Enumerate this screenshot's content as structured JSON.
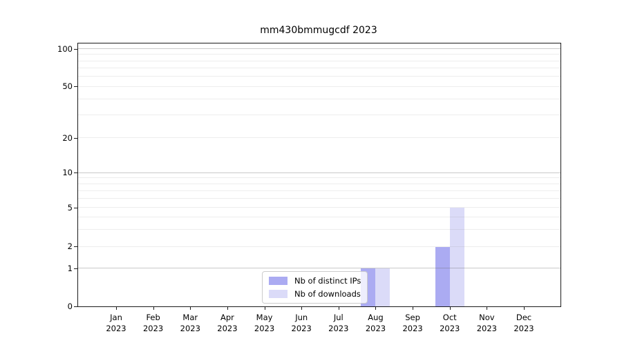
{
  "title": "mm430bmmugcdf 2023",
  "colors": {
    "background": "#ffffff",
    "bar_distinct_ips": "#ababf2",
    "bar_downloads": "#dbdbf8",
    "axis": "#1a1a1a",
    "grid_major": "rgba(100,100,100,0.35)",
    "grid_minor": "rgba(140,140,140,0.16)",
    "legend_border": "#cccccc",
    "legend_background": "rgba(255,255,255,0.8)"
  },
  "chart_data": {
    "type": "bar",
    "title": "mm430bmmugcdf 2023",
    "xlabel": "",
    "ylabel": "",
    "categories": [
      "Jan 2023",
      "Feb 2023",
      "Mar 2023",
      "Apr 2023",
      "May 2023",
      "Jun 2023",
      "Jul 2023",
      "Aug 2023",
      "Sep 2023",
      "Oct 2023",
      "Nov 2023",
      "Dec 2023"
    ],
    "series": [
      {
        "name": "Nb of distinct IPs",
        "color": "#ababf2",
        "values": [
          0,
          0,
          0,
          0,
          0,
          0,
          0,
          1,
          0,
          2,
          0,
          0
        ]
      },
      {
        "name": "Nb of downloads",
        "color": "#dbdbf8",
        "values": [
          0,
          0,
          0,
          0,
          0,
          0,
          0,
          1,
          0,
          5,
          0,
          0
        ]
      }
    ],
    "y_scale": "log-like (custom ticks 0,1,2,5,10,20,50,100)",
    "ylim": [
      0,
      110
    ],
    "y_ticks": [
      {
        "value": 0,
        "frac": 0.0
      },
      {
        "value": 1,
        "frac": 0.144
      },
      {
        "value": 2,
        "frac": 0.226
      },
      {
        "value": 5,
        "frac": 0.375
      },
      {
        "value": 10,
        "frac": 0.507
      },
      {
        "value": 20,
        "frac": 0.64
      },
      {
        "value": 50,
        "frac": 0.835
      },
      {
        "value": 100,
        "frac": 0.979
      }
    ],
    "grid": {
      "on": true,
      "major_values": [
        1,
        10,
        100
      ],
      "minor_values": [
        2,
        3,
        4,
        5,
        6,
        7,
        8,
        9,
        20,
        30,
        40,
        50,
        60,
        70,
        80,
        90
      ]
    },
    "legend": {
      "position": "lower center",
      "entries": [
        "Nb of distinct IPs",
        "Nb of downloads"
      ]
    }
  }
}
